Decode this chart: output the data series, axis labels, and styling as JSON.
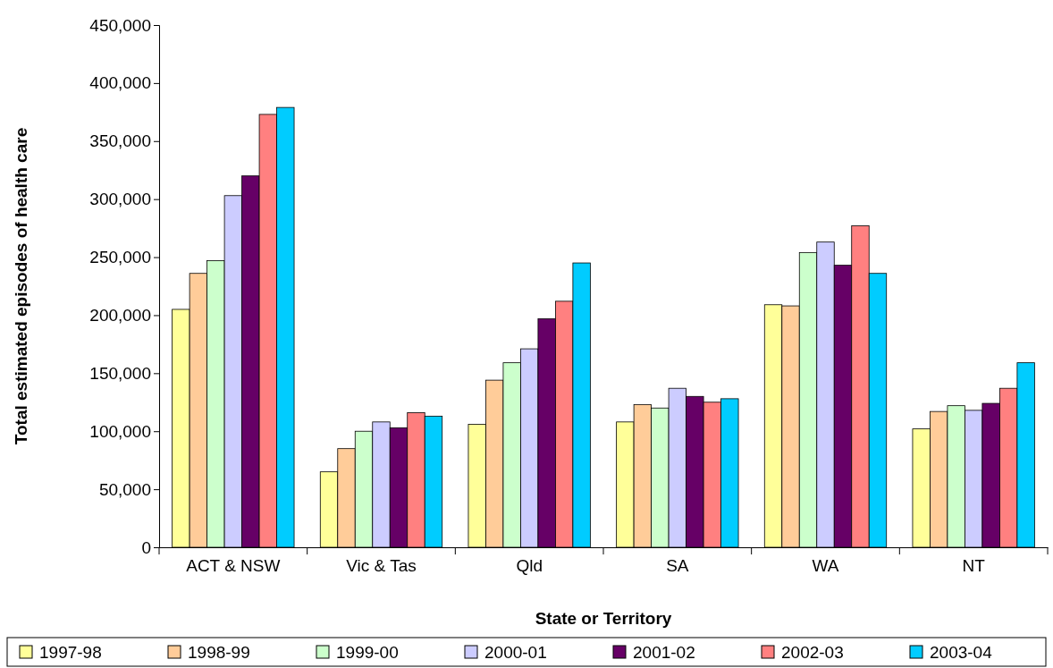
{
  "chart_data": {
    "type": "bar",
    "xlabel": "State or Territory",
    "ylabel": "Total estimated episodes of health care",
    "categories": [
      "ACT & NSW",
      "Vic & Tas",
      "Qld",
      "SA",
      "WA",
      "NT"
    ],
    "series": [
      {
        "name": "1997-98",
        "color": "#ffff99",
        "values": [
          205000,
          65000,
          106000,
          108000,
          209000,
          102000
        ]
      },
      {
        "name": "1998-99",
        "color": "#ffcc99",
        "values": [
          236000,
          85000,
          144000,
          123000,
          208000,
          117000
        ]
      },
      {
        "name": "1999-00",
        "color": "#ccffcc",
        "values": [
          247000,
          100000,
          159000,
          120000,
          254000,
          122000
        ]
      },
      {
        "name": "2000-01",
        "color": "#ccccff",
        "values": [
          303000,
          108000,
          171000,
          137000,
          263000,
          118000
        ]
      },
      {
        "name": "2001-02",
        "color": "#660066",
        "values": [
          320000,
          103000,
          197000,
          130000,
          243000,
          124000
        ]
      },
      {
        "name": "2002-03",
        "color": "#ff8080",
        "values": [
          373000,
          116000,
          212000,
          125000,
          277000,
          137000
        ]
      },
      {
        "name": "2003-04",
        "color": "#00ccff",
        "values": [
          379000,
          113000,
          245000,
          128000,
          236000,
          159000
        ]
      }
    ],
    "ylim": [
      0,
      450000
    ],
    "yticks": [
      {
        "value": 0,
        "label": "0"
      },
      {
        "value": 50000,
        "label": "50,000"
      },
      {
        "value": 100000,
        "label": "100,000"
      },
      {
        "value": 150000,
        "label": "150,000"
      },
      {
        "value": 200000,
        "label": "200,000"
      },
      {
        "value": 250000,
        "label": "250,000"
      },
      {
        "value": 300000,
        "label": "300,000"
      },
      {
        "value": 350000,
        "label": "350,000"
      },
      {
        "value": 400000,
        "label": "400,000"
      },
      {
        "value": 450000,
        "label": "450,000"
      }
    ],
    "legend": "bottom"
  }
}
